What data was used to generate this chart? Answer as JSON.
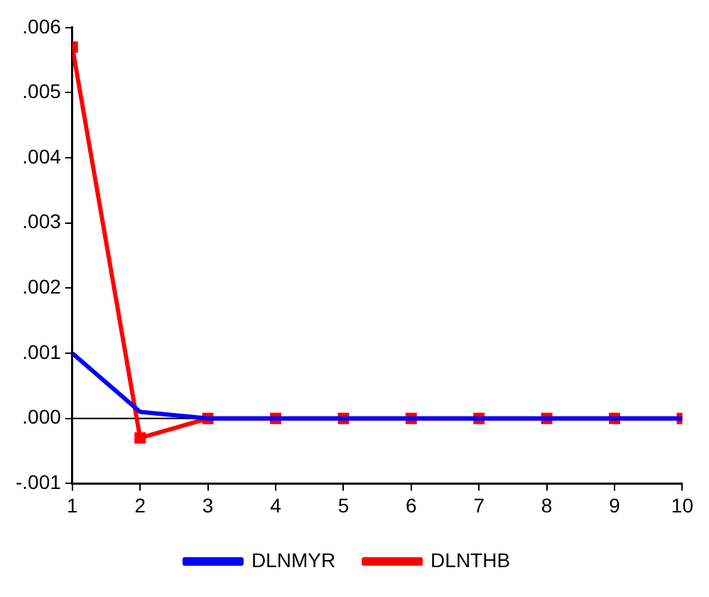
{
  "chart_data": {
    "type": "line",
    "x": [
      1,
      2,
      3,
      4,
      5,
      6,
      7,
      8,
      9,
      10
    ],
    "series": [
      {
        "name": "DLNMYR",
        "color": "#0000ff",
        "marker": "none",
        "values": [
          0.001,
          0.0001,
          0,
          0,
          0,
          0,
          0,
          0,
          0,
          0
        ]
      },
      {
        "name": "DLNTHB",
        "color": "#ff0000",
        "marker": "square",
        "values": [
          0.0057,
          -0.0003,
          0,
          0,
          0,
          0,
          0,
          0,
          0,
          0
        ]
      }
    ],
    "xlim": [
      1,
      10
    ],
    "xticks": [
      1,
      2,
      3,
      4,
      5,
      6,
      7,
      8,
      9,
      10
    ],
    "ylim": [
      -0.001,
      0.006
    ],
    "yticks": [
      {
        "value": -0.001,
        "label": "-.001"
      },
      {
        "value": 0,
        "label": ".000"
      },
      {
        "value": 0.001,
        "label": ".001"
      },
      {
        "value": 0.002,
        "label": ".002"
      },
      {
        "value": 0.003,
        "label": ".003"
      },
      {
        "value": 0.004,
        "label": ".004"
      },
      {
        "value": 0.005,
        "label": ".005"
      },
      {
        "value": 0.006,
        "label": ".006"
      }
    ],
    "ref_lines": [
      {
        "axis": "y",
        "value": 0,
        "color": "#000000"
      }
    ],
    "grid": false,
    "legend": "bottom",
    "line_style": "solid"
  }
}
